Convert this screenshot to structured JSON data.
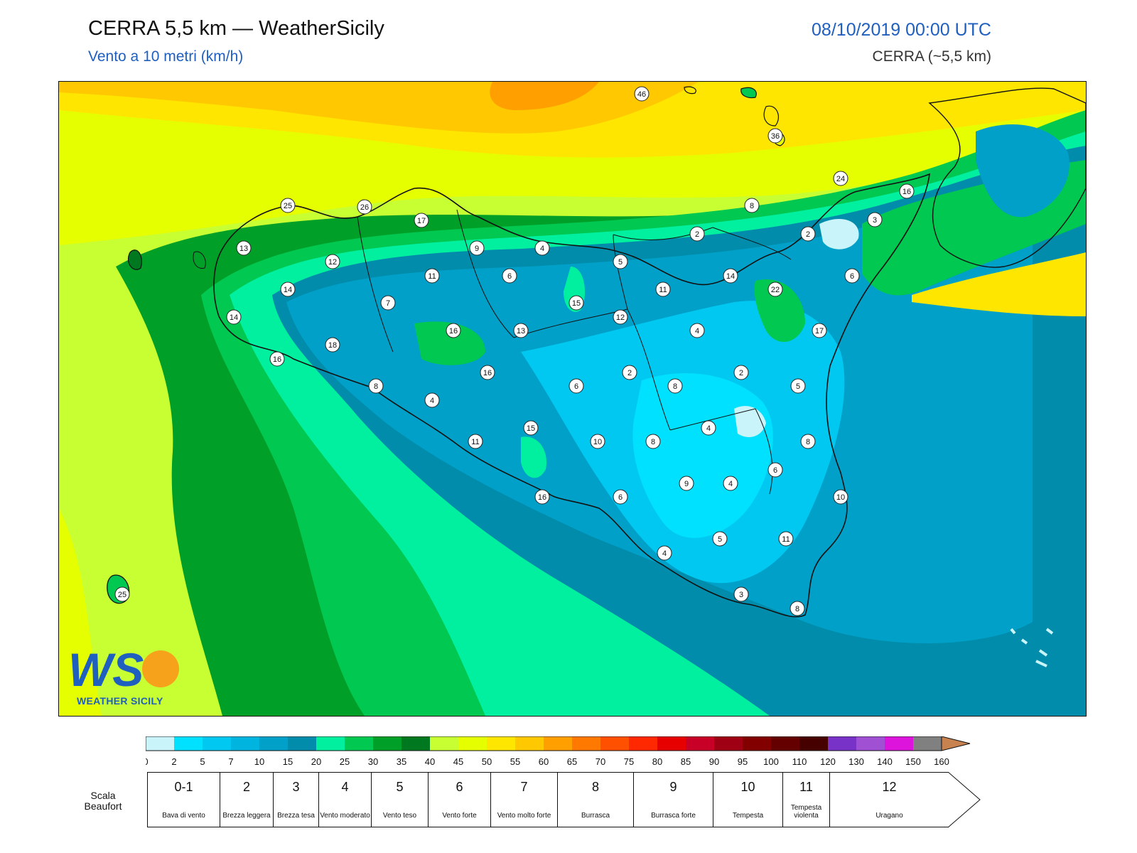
{
  "header": {
    "title": "CERRA 5,5 km — WeatherSicily",
    "subtitle": "Vento a 10 metri (km/h)",
    "date": "08/10/2019 00:00 UTC",
    "model": "CERRA (~5,5 km)"
  },
  "logo": {
    "mark": "WS",
    "name": "WEATHER SICILY"
  },
  "map": {
    "stations": [
      {
        "value": "46"
      },
      {
        "value": "36"
      },
      {
        "value": "24"
      },
      {
        "value": "16"
      },
      {
        "value": "3"
      },
      {
        "value": "8"
      },
      {
        "value": "2"
      },
      {
        "value": "2"
      },
      {
        "value": "25"
      },
      {
        "value": "26"
      },
      {
        "value": "17"
      },
      {
        "value": "13"
      },
      {
        "value": "12"
      },
      {
        "value": "9"
      },
      {
        "value": "4"
      },
      {
        "value": "5"
      },
      {
        "value": "6"
      },
      {
        "value": "14"
      },
      {
        "value": "11"
      },
      {
        "value": "6"
      },
      {
        "value": "11"
      },
      {
        "value": "22"
      },
      {
        "value": "14"
      },
      {
        "value": "7"
      },
      {
        "value": "15"
      },
      {
        "value": "12"
      },
      {
        "value": "14"
      },
      {
        "value": "4"
      },
      {
        "value": "17"
      },
      {
        "value": "16"
      },
      {
        "value": "13"
      },
      {
        "value": "16"
      },
      {
        "value": "18"
      },
      {
        "value": "16"
      },
      {
        "value": "2"
      },
      {
        "value": "2"
      },
      {
        "value": "8"
      },
      {
        "value": "6"
      },
      {
        "value": "8"
      },
      {
        "value": "4"
      },
      {
        "value": "5"
      },
      {
        "value": "15"
      },
      {
        "value": "4"
      },
      {
        "value": "11"
      },
      {
        "value": "10"
      },
      {
        "value": "8"
      },
      {
        "value": "8"
      },
      {
        "value": "6"
      },
      {
        "value": "9"
      },
      {
        "value": "4"
      },
      {
        "value": "16"
      },
      {
        "value": "6"
      },
      {
        "value": "10"
      },
      {
        "value": "5"
      },
      {
        "value": "11"
      },
      {
        "value": "4"
      },
      {
        "value": "3"
      },
      {
        "value": "8"
      },
      {
        "value": "25"
      }
    ]
  },
  "colorscale": {
    "ticks": [
      "0",
      "2",
      "5",
      "7",
      "10",
      "15",
      "20",
      "25",
      "30",
      "35",
      "40",
      "45",
      "50",
      "55",
      "60",
      "65",
      "70",
      "75",
      "80",
      "85",
      "90",
      "95",
      "100",
      "110",
      "120",
      "130",
      "140",
      "150",
      "160"
    ],
    "colors": [
      "#c8f4fa",
      "#00e0ff",
      "#00c8f0",
      "#00b4e0",
      "#00a0c8",
      "#008caa",
      "#00f0a0",
      "#00c850",
      "#00a028",
      "#007820",
      "#c8ff32",
      "#e6ff00",
      "#ffe600",
      "#ffc800",
      "#ffa000",
      "#ff7800",
      "#ff5000",
      "#ff2800",
      "#e60000",
      "#c80028",
      "#a00014",
      "#820000",
      "#640000",
      "#460000",
      "#7832c8",
      "#a050d2",
      "#dc14dc",
      "#808080",
      "#5a5a5a",
      "#000000",
      "#8c5028",
      "#c88250"
    ]
  },
  "beaufort": {
    "label": "Scala Beaufort",
    "levels": [
      {
        "num": "0-1",
        "desc": "Bava di vento"
      },
      {
        "num": "2",
        "desc": "Brezza leggera"
      },
      {
        "num": "3",
        "desc": "Brezza tesa"
      },
      {
        "num": "4",
        "desc": "Vento moderato"
      },
      {
        "num": "5",
        "desc": "Vento teso"
      },
      {
        "num": "6",
        "desc": "Vento forte"
      },
      {
        "num": "7",
        "desc": "Vento molto forte"
      },
      {
        "num": "8",
        "desc": "Burrasca"
      },
      {
        "num": "9",
        "desc": "Burrasca forte"
      },
      {
        "num": "10",
        "desc": "Tempesta"
      },
      {
        "num": "11",
        "desc": "Tempesta violenta"
      },
      {
        "num": "12",
        "desc": "Uragano"
      }
    ]
  }
}
